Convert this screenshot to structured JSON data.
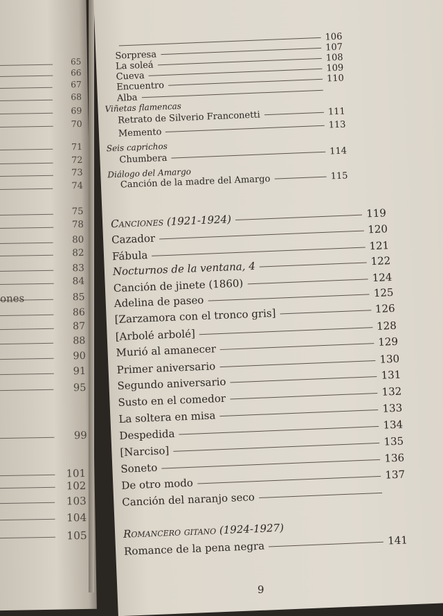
{
  "left_page": {
    "fragment_text": "ones",
    "page_numbers": [
      "65",
      "66",
      "67",
      "68",
      "69",
      "70",
      "71",
      "72",
      "73",
      "74",
      "75",
      "78",
      "80",
      "82",
      "83",
      "84",
      "85",
      "86",
      "87",
      "88",
      "90",
      "91",
      "95",
      "99",
      "101",
      "102",
      "103",
      "104",
      "105"
    ]
  },
  "right_page": {
    "entries": [
      {
        "title": "",
        "page": "106",
        "style": "sub"
      },
      {
        "title": "Sorpresa",
        "page": "107",
        "style": "sub"
      },
      {
        "title": "La soleá",
        "page": "108",
        "style": "sub"
      },
      {
        "title": "Cueva",
        "page": "109",
        "style": "sub"
      },
      {
        "title": "Encuentro",
        "page": "110",
        "style": "sub"
      },
      {
        "title": "Alba",
        "page": "",
        "style": "sub"
      },
      {
        "title": "Viñetas flamencas",
        "page": "",
        "style": "section-italic"
      },
      {
        "title": "Retrato de Silverio Franconetti",
        "page": "111",
        "style": "sub"
      },
      {
        "title": "Memento",
        "page": "113",
        "style": "sub"
      },
      {
        "title": "Seis caprichos",
        "page": "",
        "style": "section-italic"
      },
      {
        "title": "Chumbera",
        "page": "114",
        "style": "sub"
      },
      {
        "title": "Diálogo del Amargo",
        "page": "",
        "style": "section-italic"
      },
      {
        "title": "Canción de la madre del Amargo",
        "page": "115",
        "style": "sub"
      },
      {
        "title": "Canciones (1921-1924)",
        "page": "119",
        "style": "book"
      },
      {
        "title": "Cazador",
        "page": "120",
        "style": "main"
      },
      {
        "title": "Fábula",
        "page": "121",
        "style": "main"
      },
      {
        "title": "Nocturnos de la ventana, 4",
        "page": "122",
        "style": "main-italic"
      },
      {
        "title": "Canción de jinete (1860)",
        "page": "124",
        "style": "main"
      },
      {
        "title": "Adelina de paseo",
        "page": "125",
        "style": "main"
      },
      {
        "title": "[Zarzamora con el tronco gris]",
        "page": "126",
        "style": "main"
      },
      {
        "title": "[Arbolé arbolé]",
        "page": "128",
        "style": "main"
      },
      {
        "title": "Murió al amanecer",
        "page": "129",
        "style": "main"
      },
      {
        "title": "Primer aniversario",
        "page": "130",
        "style": "main"
      },
      {
        "title": "Segundo aniversario",
        "page": "131",
        "style": "main"
      },
      {
        "title": "Susto en el comedor",
        "page": "132",
        "style": "main"
      },
      {
        "title": "La soltera en misa",
        "page": "133",
        "style": "main"
      },
      {
        "title": "Despedida",
        "page": "134",
        "style": "main"
      },
      {
        "title": "[Narciso]",
        "page": "135",
        "style": "main"
      },
      {
        "title": "Soneto",
        "page": "136",
        "style": "main"
      },
      {
        "title": "De otro modo",
        "page": "137",
        "style": "main"
      },
      {
        "title": "Canción del naranjo seco",
        "page": "",
        "style": "main"
      },
      {
        "title": "Romancero gitano (1924-1927)",
        "page": "",
        "style": "book"
      },
      {
        "title": "Romance de la pena negra",
        "page": "141",
        "style": "main"
      }
    ],
    "folio": "9"
  }
}
